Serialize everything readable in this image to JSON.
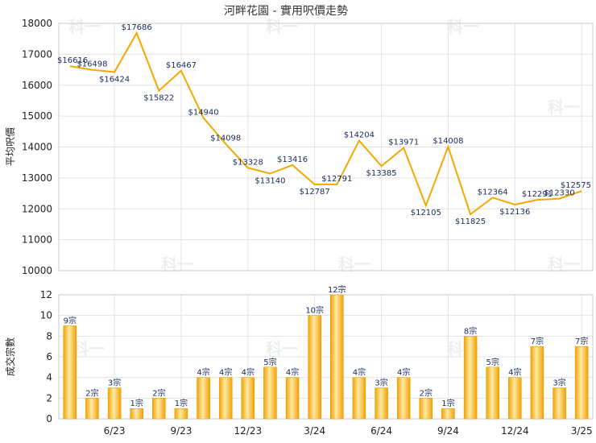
{
  "chart_data": [
    {
      "type": "line",
      "title": "河畔花園 - 實用呎價走勢",
      "ylabel": "平均呎價",
      "ylim": [
        10000,
        18000
      ],
      "yticks": [
        10000,
        11000,
        12000,
        13000,
        14000,
        15000,
        16000,
        17000,
        18000
      ],
      "grid": true,
      "color": "#f5a800",
      "values": [
        16616,
        16498,
        16424,
        17686,
        15822,
        16467,
        14940,
        14098,
        13328,
        13140,
        13416,
        12787,
        12791,
        14204,
        13385,
        13971,
        12105,
        14008,
        11825,
        12364,
        12136,
        12291,
        12330,
        12575
      ],
      "labels": [
        "$16616",
        "$16498",
        "$16424",
        "$17686",
        "$15822",
        "$16467",
        "$14940",
        "$14098",
        "$13328",
        "$13140",
        "$13416",
        "$12787",
        "$12791",
        "$14204",
        "$13385",
        "$13971",
        "$12105",
        "$14008",
        "$11825",
        "$12364",
        "$12136",
        "$12291",
        "$12330",
        "$12575"
      ]
    },
    {
      "type": "bar",
      "ylabel": "成交宗數",
      "ylim": [
        0,
        12
      ],
      "yticks": [
        0,
        2,
        4,
        6,
        8,
        10,
        12
      ],
      "grid": true,
      "color": "#f5a800",
      "values": [
        9,
        2,
        3,
        1,
        2,
        1,
        4,
        4,
        4,
        5,
        4,
        10,
        12,
        4,
        3,
        4,
        2,
        1,
        8,
        5,
        4,
        7,
        3,
        7
      ],
      "labels": [
        "9宗",
        "2宗",
        "3宗",
        "1宗",
        "2宗",
        "1宗",
        "4宗",
        "4宗",
        "4宗",
        "5宗",
        "4宗",
        "10宗",
        "12宗",
        "4宗",
        "3宗",
        "4宗",
        "2宗",
        "1宗",
        "8宗",
        "5宗",
        "4宗",
        "7宗",
        "3宗",
        "7宗"
      ],
      "x_tick_labels": [
        "6/23",
        "9/23",
        "12/23",
        "3/24",
        "6/24",
        "9/24",
        "12/24",
        "3/25"
      ],
      "x_tick_index": [
        2,
        5,
        8,
        11,
        14,
        17,
        20,
        23
      ]
    }
  ],
  "watermark": "科一"
}
